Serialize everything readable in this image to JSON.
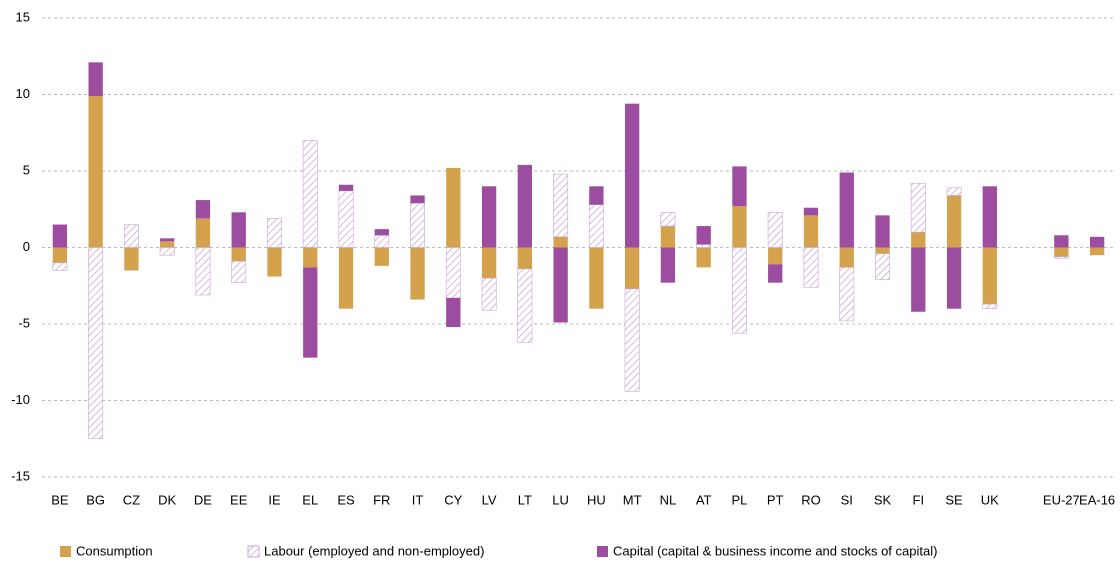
{
  "chart_data": {
    "type": "bar",
    "stacked": true,
    "categories": [
      "BE",
      "BG",
      "CZ",
      "DK",
      "DE",
      "EE",
      "IE",
      "EL",
      "ES",
      "FR",
      "IT",
      "CY",
      "LV",
      "LT",
      "LU",
      "HU",
      "MT",
      "NL",
      "AT",
      "PL",
      "PT",
      "RO",
      "SI",
      "SK",
      "FI",
      "SE",
      "UK",
      null,
      "EU-27",
      "EA-16"
    ],
    "series": [
      {
        "name": "Consumption",
        "color": "#d4a24c",
        "pattern": "solid",
        "values": [
          -1.0,
          9.9,
          -1.5,
          0.4,
          1.9,
          -0.9,
          -1.9,
          -1.3,
          -4.0,
          -1.2,
          -3.4,
          5.2,
          -2.0,
          -1.4,
          0.7,
          -4.0,
          -2.7,
          1.4,
          -1.3,
          2.7,
          -1.1,
          2.1,
          -1.3,
          -0.4,
          1.0,
          3.4,
          -3.7,
          null,
          -0.6,
          -0.5
        ]
      },
      {
        "name": "Labour (employed and non-employed)",
        "color": "#c7a6d3",
        "pattern": "hatch",
        "values": [
          -0.5,
          -12.5,
          1.5,
          -0.5,
          -3.1,
          -1.4,
          1.9,
          7.0,
          3.7,
          0.8,
          2.9,
          -3.3,
          -2.1,
          -4.8,
          4.1,
          2.8,
          -6.7,
          0.9,
          0.2,
          -5.6,
          2.3,
          -2.6,
          -3.5,
          -1.7,
          3.2,
          0.5,
          -0.3,
          null,
          -0.1,
          0
        ]
      },
      {
        "name": "Capital (capital & business income and stocks of capital)",
        "color": "#9c4d9f",
        "pattern": "solid",
        "values": [
          1.5,
          2.2,
          0,
          0.2,
          1.2,
          2.3,
          0,
          -5.9,
          0.4,
          0.4,
          0.5,
          -1.9,
          4.0,
          5.4,
          -4.9,
          1.2,
          9.4,
          -2.3,
          1.2,
          2.6,
          -1.2,
          0.5,
          4.9,
          2.1,
          -4.2,
          -4.0,
          4.0,
          null,
          0.8,
          0.7
        ]
      }
    ],
    "ylim": [
      -15,
      15
    ],
    "yticks": [
      -15,
      -10,
      -5,
      0,
      5,
      10,
      15
    ],
    "grid": true,
    "legend": "bottom"
  }
}
